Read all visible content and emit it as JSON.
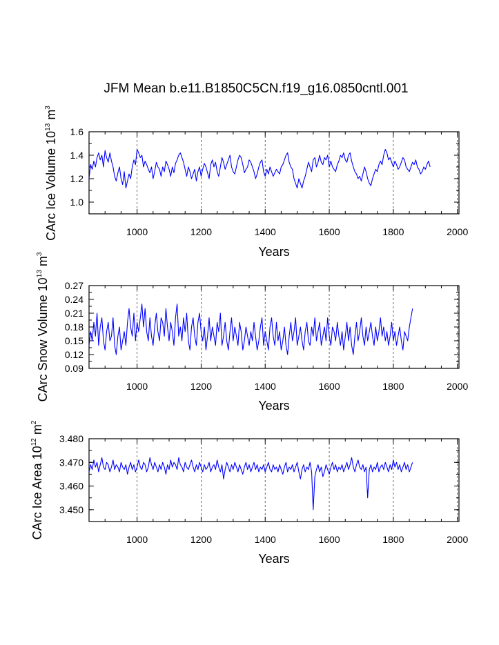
{
  "title": "JFM Mean b.e11.B1850C5CN.f19_g16.0850cntl.001",
  "colors": {
    "series": "#0000ff",
    "axis": "#000000",
    "grid": "#444444"
  },
  "chart_data": [
    {
      "type": "line",
      "name": "ice-volume",
      "xlabel": "Years",
      "ylabel_prefix": "CArc Ice Volume 10",
      "ylabel_exp": "13",
      "ylabel_unit": " m",
      "ylabel_unit_exp": "3",
      "xlim": [
        850,
        2005
      ],
      "ylim": [
        0.9,
        1.6
      ],
      "xticks": [
        "1000",
        "1200",
        "1400",
        "1600",
        "1800",
        "2000"
      ],
      "yticks": [
        "1.0",
        "1.2",
        "1.4",
        "1.6"
      ],
      "grid_x": true,
      "series": [
        {
          "name": "ice volume",
          "x_start": 850,
          "x_step": 5,
          "values": [
            1.2,
            1.32,
            1.28,
            1.35,
            1.3,
            1.38,
            1.42,
            1.36,
            1.4,
            1.3,
            1.44,
            1.38,
            1.34,
            1.42,
            1.35,
            1.3,
            1.22,
            1.18,
            1.25,
            1.3,
            1.2,
            1.15,
            1.26,
            1.12,
            1.18,
            1.24,
            1.2,
            1.3,
            1.36,
            1.32,
            1.45,
            1.42,
            1.38,
            1.4,
            1.3,
            1.35,
            1.32,
            1.28,
            1.25,
            1.3,
            1.2,
            1.26,
            1.34,
            1.3,
            1.28,
            1.22,
            1.3,
            1.26,
            1.35,
            1.32,
            1.28,
            1.22,
            1.3,
            1.25,
            1.33,
            1.36,
            1.4,
            1.42,
            1.38,
            1.34,
            1.28,
            1.22,
            1.3,
            1.26,
            1.2,
            1.24,
            1.28,
            1.18,
            1.26,
            1.3,
            1.22,
            1.28,
            1.33,
            1.3,
            1.25,
            1.2,
            1.32,
            1.36,
            1.3,
            1.34,
            1.26,
            1.22,
            1.3,
            1.38,
            1.34,
            1.28,
            1.32,
            1.36,
            1.4,
            1.3,
            1.26,
            1.24,
            1.3,
            1.36,
            1.4,
            1.38,
            1.32,
            1.25,
            1.28,
            1.3,
            1.36,
            1.34,
            1.3,
            1.26,
            1.2,
            1.24,
            1.3,
            1.34,
            1.36,
            1.26,
            1.22,
            1.28,
            1.24,
            1.3,
            1.26,
            1.22,
            1.25,
            1.28,
            1.26,
            1.24,
            1.3,
            1.32,
            1.36,
            1.4,
            1.42,
            1.34,
            1.3,
            1.28,
            1.2,
            1.16,
            1.12,
            1.2,
            1.16,
            1.12,
            1.18,
            1.22,
            1.28,
            1.34,
            1.3,
            1.26,
            1.36,
            1.38,
            1.3,
            1.34,
            1.4,
            1.34,
            1.32,
            1.38,
            1.36,
            1.4,
            1.3,
            1.35,
            1.3,
            1.28,
            1.26,
            1.32,
            1.35,
            1.4,
            1.38,
            1.42,
            1.36,
            1.34,
            1.4,
            1.42,
            1.35,
            1.3,
            1.26,
            1.24,
            1.2,
            1.22,
            1.18,
            1.24,
            1.3,
            1.26,
            1.2,
            1.16,
            1.14,
            1.2,
            1.24,
            1.28,
            1.26,
            1.32,
            1.35,
            1.32,
            1.4,
            1.45,
            1.42,
            1.36,
            1.38,
            1.34,
            1.3,
            1.35,
            1.32,
            1.28,
            1.3,
            1.34,
            1.38,
            1.36,
            1.3,
            1.28,
            1.26,
            1.3,
            1.34,
            1.32,
            1.36,
            1.3,
            1.28,
            1.24,
            1.26,
            1.3,
            1.28,
            1.32,
            1.35,
            1.3
          ]
        }
      ]
    },
    {
      "type": "line",
      "name": "snow-volume",
      "xlabel": "Years",
      "ylabel_prefix": "CArc Snow Volume 10",
      "ylabel_exp": "13",
      "ylabel_unit": " m",
      "ylabel_unit_exp": "3",
      "xlim": [
        850,
        2005
      ],
      "ylim": [
        0.09,
        0.27
      ],
      "xticks": [
        "1000",
        "1200",
        "1400",
        "1600",
        "1800",
        "2000"
      ],
      "yticks": [
        "0.09",
        "0.12",
        "0.15",
        "0.18",
        "0.21",
        "0.24",
        "0.27"
      ],
      "grid_x": true,
      "series": [
        {
          "name": "snow volume",
          "x_start": 850,
          "x_step": 5,
          "values": [
            0.14,
            0.17,
            0.15,
            0.19,
            0.16,
            0.21,
            0.14,
            0.18,
            0.2,
            0.15,
            0.13,
            0.17,
            0.19,
            0.15,
            0.16,
            0.2,
            0.14,
            0.12,
            0.16,
            0.18,
            0.13,
            0.15,
            0.17,
            0.14,
            0.19,
            0.22,
            0.18,
            0.16,
            0.21,
            0.15,
            0.19,
            0.17,
            0.2,
            0.23,
            0.18,
            0.22,
            0.17,
            0.15,
            0.2,
            0.16,
            0.14,
            0.18,
            0.21,
            0.17,
            0.15,
            0.2,
            0.19,
            0.16,
            0.22,
            0.18,
            0.15,
            0.19,
            0.17,
            0.14,
            0.2,
            0.23,
            0.16,
            0.18,
            0.15,
            0.2,
            0.17,
            0.21,
            0.15,
            0.13,
            0.18,
            0.2,
            0.16,
            0.14,
            0.19,
            0.21,
            0.17,
            0.15,
            0.18,
            0.13,
            0.16,
            0.2,
            0.15,
            0.18,
            0.16,
            0.14,
            0.19,
            0.17,
            0.21,
            0.14,
            0.16,
            0.19,
            0.15,
            0.13,
            0.17,
            0.2,
            0.15,
            0.18,
            0.16,
            0.14,
            0.19,
            0.17,
            0.13,
            0.15,
            0.18,
            0.16,
            0.14,
            0.17,
            0.15,
            0.19,
            0.16,
            0.13,
            0.15,
            0.18,
            0.2,
            0.14,
            0.17,
            0.15,
            0.13,
            0.18,
            0.2,
            0.16,
            0.14,
            0.19,
            0.15,
            0.17,
            0.13,
            0.15,
            0.18,
            0.14,
            0.12,
            0.16,
            0.19,
            0.15,
            0.17,
            0.2,
            0.14,
            0.16,
            0.18,
            0.15,
            0.13,
            0.17,
            0.19,
            0.15,
            0.14,
            0.18,
            0.16,
            0.2,
            0.15,
            0.17,
            0.19,
            0.14,
            0.16,
            0.18,
            0.15,
            0.2,
            0.16,
            0.14,
            0.18,
            0.17,
            0.15,
            0.19,
            0.16,
            0.14,
            0.17,
            0.13,
            0.16,
            0.19,
            0.15,
            0.18,
            0.14,
            0.12,
            0.16,
            0.19,
            0.15,
            0.17,
            0.2,
            0.16,
            0.14,
            0.18,
            0.15,
            0.17,
            0.19,
            0.16,
            0.14,
            0.18,
            0.15,
            0.17,
            0.2,
            0.16,
            0.18,
            0.15,
            0.17,
            0.14,
            0.16,
            0.19,
            0.15,
            0.17,
            0.14,
            0.16,
            0.18,
            0.15,
            0.13,
            0.17,
            0.16,
            0.15,
            0.18,
            0.2,
            0.22
          ]
        }
      ]
    },
    {
      "type": "line",
      "name": "ice-area",
      "xlabel": "Years",
      "ylabel_prefix": "CArc Ice Area 10",
      "ylabel_exp": "12",
      "ylabel_unit": " m",
      "ylabel_unit_exp": "2",
      "xlim": [
        850,
        2005
      ],
      "ylim": [
        3.445,
        3.48
      ],
      "xticks": [
        "1000",
        "1200",
        "1400",
        "1600",
        "1800",
        "2000"
      ],
      "yticks": [
        "3.450",
        "3.460",
        "3.470",
        "3.480"
      ],
      "grid_x": true,
      "series": [
        {
          "name": "ice area",
          "x_start": 850,
          "x_step": 5,
          "values": [
            3.466,
            3.469,
            3.467,
            3.471,
            3.468,
            3.47,
            3.466,
            3.469,
            3.472,
            3.468,
            3.467,
            3.47,
            3.469,
            3.466,
            3.468,
            3.471,
            3.467,
            3.469,
            3.468,
            3.466,
            3.47,
            3.468,
            3.467,
            3.469,
            3.465,
            3.468,
            3.47,
            3.467,
            3.469,
            3.466,
            3.468,
            3.471,
            3.468,
            3.467,
            3.47,
            3.469,
            3.466,
            3.468,
            3.472,
            3.469,
            3.467,
            3.47,
            3.468,
            3.466,
            3.469,
            3.467,
            3.47,
            3.468,
            3.465,
            3.469,
            3.467,
            3.471,
            3.468,
            3.47,
            3.469,
            3.467,
            3.472,
            3.469,
            3.468,
            3.466,
            3.47,
            3.468,
            3.467,
            3.469,
            3.471,
            3.468,
            3.466,
            3.469,
            3.467,
            3.47,
            3.468,
            3.466,
            3.469,
            3.467,
            3.468,
            3.47,
            3.466,
            3.468,
            3.469,
            3.467,
            3.471,
            3.468,
            3.466,
            3.469,
            3.463,
            3.467,
            3.47,
            3.468,
            3.466,
            3.469,
            3.467,
            3.47,
            3.468,
            3.466,
            3.469,
            3.467,
            3.465,
            3.468,
            3.47,
            3.467,
            3.469,
            3.466,
            3.468,
            3.47,
            3.467,
            3.469,
            3.466,
            3.468,
            3.467,
            3.469,
            3.466,
            3.468,
            3.47,
            3.467,
            3.466,
            3.469,
            3.467,
            3.468,
            3.466,
            3.469,
            3.467,
            3.465,
            3.468,
            3.47,
            3.466,
            3.468,
            3.467,
            3.469,
            3.466,
            3.468,
            3.47,
            3.466,
            3.463,
            3.467,
            3.469,
            3.466,
            3.468,
            3.467,
            3.47,
            3.466,
            3.45,
            3.464,
            3.467,
            3.469,
            3.466,
            3.468,
            3.464,
            3.466,
            3.469,
            3.467,
            3.465,
            3.468,
            3.47,
            3.467,
            3.469,
            3.466,
            3.468,
            3.467,
            3.469,
            3.466,
            3.468,
            3.47,
            3.467,
            3.469,
            3.472,
            3.468,
            3.466,
            3.469,
            3.471,
            3.468,
            3.467,
            3.469,
            3.466,
            3.468,
            3.455,
            3.467,
            3.469,
            3.466,
            3.468,
            3.467,
            3.47,
            3.466,
            3.468,
            3.469,
            3.467,
            3.47,
            3.468,
            3.466,
            3.469,
            3.467,
            3.471,
            3.468,
            3.47,
            3.467,
            3.469,
            3.466,
            3.468,
            3.47,
            3.467,
            3.469,
            3.466,
            3.468,
            3.47
          ]
        }
      ]
    }
  ]
}
